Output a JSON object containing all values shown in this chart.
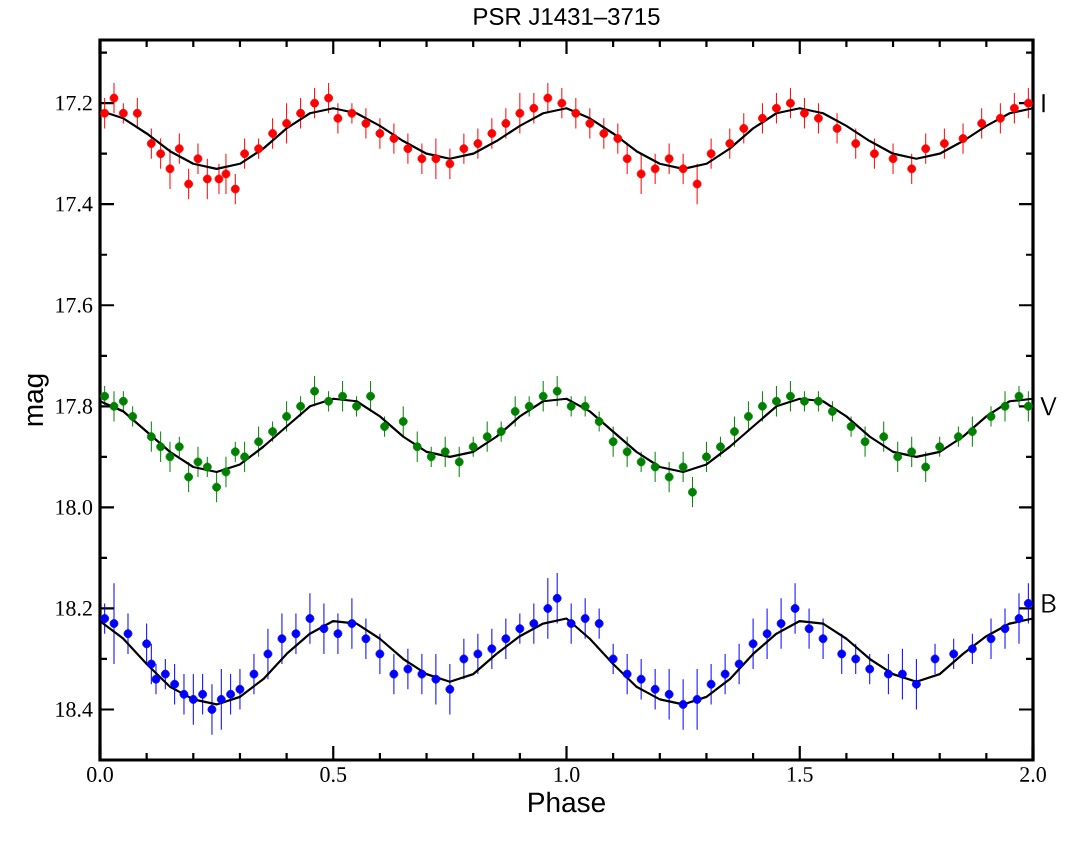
{
  "chart_data": {
    "type": "scatter",
    "title": "PSR J1431–3715",
    "xlabel": "Phase",
    "ylabel": "mag",
    "xlim": [
      0,
      2
    ],
    "ylim": [
      18.5,
      17.075
    ],
    "xticks": [
      {
        "value": 0,
        "label": "0.0"
      },
      {
        "value": 0.1,
        "label": null
      },
      {
        "value": 0.2,
        "label": null
      },
      {
        "value": 0.3,
        "label": null
      },
      {
        "value": 0.4,
        "label": null
      },
      0.5,
      {
        "value": 0.6,
        "label": null
      },
      {
        "value": 0.7,
        "label": null
      },
      {
        "value": 0.8,
        "label": null
      },
      {
        "value": 0.9,
        "label": null
      },
      {
        "value": 1,
        "label": "1.0"
      },
      {
        "value": 1.1,
        "label": null
      },
      {
        "value": 1.2,
        "label": null
      },
      {
        "value": 1.3,
        "label": null
      },
      {
        "value": 1.4,
        "label": null
      },
      1.5,
      {
        "value": 1.6,
        "label": null
      },
      {
        "value": 1.7,
        "label": null
      },
      {
        "value": 1.8,
        "label": null
      },
      {
        "value": 1.9,
        "label": null
      },
      {
        "value": 2,
        "label": "2.0"
      }
    ],
    "yticks": [
      {
        "value": 17.1,
        "label": null
      },
      17.2,
      {
        "value": 17.3,
        "label": null
      },
      17.4,
      {
        "value": 17.5,
        "label": null
      },
      17.6,
      {
        "value": 17.7,
        "label": null
      },
      17.8,
      {
        "value": 17.9,
        "label": null
      },
      {
        "value": 18.0,
        "label": "18.0"
      },
      {
        "value": 18.1,
        "label": null
      },
      18.2,
      {
        "value": 18.3,
        "label": null
      },
      18.4
    ],
    "grid": false,
    "legend": false,
    "series": [
      {
        "name": "I",
        "color": "#ff0000",
        "marker": "circle",
        "x": [
          0.01,
          0.03,
          0.05,
          0.08,
          0.11,
          0.13,
          0.15,
          0.17,
          0.19,
          0.21,
          0.23,
          0.255,
          0.27,
          0.29,
          0.31,
          0.34,
          0.37,
          0.4,
          0.43,
          0.46,
          0.49,
          0.51,
          0.54,
          0.57,
          0.6,
          0.63,
          0.66,
          0.69,
          0.72,
          0.75,
          0.78,
          0.81,
          0.84,
          0.87,
          0.9,
          0.93,
          0.96,
          0.99,
          1.02,
          1.05,
          1.08,
          1.11,
          1.13,
          1.16,
          1.19,
          1.22,
          1.25,
          1.28,
          1.31,
          1.35,
          1.38,
          1.42,
          1.45,
          1.48,
          1.51,
          1.54,
          1.58,
          1.62,
          1.66,
          1.7,
          1.74,
          1.77,
          1.81,
          1.85,
          1.89,
          1.93,
          1.96,
          1.99
        ],
        "values": [
          17.22,
          17.19,
          17.22,
          17.22,
          17.28,
          17.3,
          17.33,
          17.29,
          17.36,
          17.31,
          17.35,
          17.35,
          17.34,
          17.37,
          17.3,
          17.29,
          17.26,
          17.24,
          17.22,
          17.2,
          17.19,
          17.23,
          17.22,
          17.24,
          17.26,
          17.27,
          17.29,
          17.31,
          17.31,
          17.32,
          17.29,
          17.28,
          17.26,
          17.24,
          17.22,
          17.21,
          17.19,
          17.2,
          17.22,
          17.24,
          17.26,
          17.27,
          17.31,
          17.34,
          17.33,
          17.31,
          17.33,
          17.36,
          17.3,
          17.28,
          17.25,
          17.23,
          17.21,
          17.2,
          17.22,
          17.23,
          17.25,
          17.28,
          17.3,
          17.31,
          17.33,
          17.29,
          17.28,
          17.27,
          17.24,
          17.23,
          17.21,
          17.2
        ],
        "errors": [
          0.03,
          0.03,
          0.02,
          0.03,
          0.03,
          0.03,
          0.04,
          0.03,
          0.03,
          0.03,
          0.04,
          0.03,
          0.04,
          0.03,
          0.03,
          0.02,
          0.03,
          0.04,
          0.03,
          0.03,
          0.03,
          0.03,
          0.02,
          0.03,
          0.03,
          0.03,
          0.03,
          0.03,
          0.04,
          0.03,
          0.03,
          0.03,
          0.03,
          0.03,
          0.04,
          0.03,
          0.03,
          0.03,
          0.03,
          0.03,
          0.03,
          0.03,
          0.03,
          0.04,
          0.03,
          0.03,
          0.03,
          0.04,
          0.03,
          0.03,
          0.03,
          0.03,
          0.03,
          0.03,
          0.03,
          0.03,
          0.03,
          0.03,
          0.03,
          0.03,
          0.03,
          0.03,
          0.03,
          0.03,
          0.03,
          0.03,
          0.03,
          0.03
        ]
      },
      {
        "name": "V",
        "color": "#008000",
        "marker": "circle",
        "x": [
          0.01,
          0.03,
          0.05,
          0.07,
          0.11,
          0.13,
          0.15,
          0.17,
          0.19,
          0.21,
          0.23,
          0.25,
          0.27,
          0.29,
          0.31,
          0.34,
          0.37,
          0.4,
          0.43,
          0.46,
          0.49,
          0.52,
          0.55,
          0.58,
          0.61,
          0.65,
          0.68,
          0.71,
          0.74,
          0.77,
          0.8,
          0.83,
          0.86,
          0.89,
          0.92,
          0.95,
          0.98,
          1.01,
          1.04,
          1.07,
          1.1,
          1.13,
          1.16,
          1.19,
          1.22,
          1.25,
          1.27,
          1.3,
          1.33,
          1.36,
          1.39,
          1.42,
          1.45,
          1.48,
          1.51,
          1.54,
          1.57,
          1.61,
          1.64,
          1.68,
          1.71,
          1.74,
          1.77,
          1.8,
          1.84,
          1.87,
          1.91,
          1.94,
          1.97,
          1.99
        ],
        "values": [
          17.78,
          17.8,
          17.79,
          17.82,
          17.86,
          17.88,
          17.9,
          17.88,
          17.94,
          17.91,
          17.92,
          17.96,
          17.93,
          17.89,
          17.9,
          17.87,
          17.85,
          17.82,
          17.8,
          17.77,
          17.79,
          17.78,
          17.8,
          17.78,
          17.84,
          17.83,
          17.88,
          17.9,
          17.89,
          17.91,
          17.88,
          17.86,
          17.85,
          17.81,
          17.8,
          17.78,
          17.77,
          17.8,
          17.8,
          17.83,
          17.87,
          17.89,
          17.91,
          17.92,
          17.94,
          17.92,
          17.97,
          17.9,
          17.88,
          17.85,
          17.82,
          17.8,
          17.79,
          17.78,
          17.79,
          17.79,
          17.81,
          17.84,
          17.87,
          17.86,
          17.9,
          17.89,
          17.92,
          17.88,
          17.86,
          17.85,
          17.82,
          17.8,
          17.78,
          17.8
        ],
        "errors": [
          0.02,
          0.03,
          0.02,
          0.02,
          0.03,
          0.03,
          0.03,
          0.02,
          0.03,
          0.03,
          0.02,
          0.03,
          0.03,
          0.02,
          0.03,
          0.03,
          0.02,
          0.03,
          0.02,
          0.03,
          0.02,
          0.03,
          0.02,
          0.03,
          0.02,
          0.03,
          0.03,
          0.02,
          0.03,
          0.03,
          0.02,
          0.03,
          0.02,
          0.03,
          0.02,
          0.03,
          0.03,
          0.02,
          0.02,
          0.02,
          0.03,
          0.03,
          0.02,
          0.03,
          0.03,
          0.03,
          0.03,
          0.03,
          0.02,
          0.03,
          0.03,
          0.03,
          0.03,
          0.03,
          0.02,
          0.02,
          0.02,
          0.02,
          0.03,
          0.03,
          0.03,
          0.03,
          0.03,
          0.02,
          0.02,
          0.03,
          0.02,
          0.03,
          0.02,
          0.03
        ]
      },
      {
        "name": "B",
        "color": "#0000ff",
        "marker": "circle",
        "x": [
          0.01,
          0.03,
          0.06,
          0.1,
          0.11,
          0.12,
          0.14,
          0.16,
          0.18,
          0.2,
          0.22,
          0.24,
          0.26,
          0.28,
          0.3,
          0.33,
          0.36,
          0.39,
          0.42,
          0.45,
          0.48,
          0.51,
          0.54,
          0.57,
          0.6,
          0.63,
          0.66,
          0.69,
          0.72,
          0.75,
          0.78,
          0.81,
          0.84,
          0.87,
          0.9,
          0.93,
          0.96,
          0.98,
          1.01,
          1.04,
          1.07,
          1.1,
          1.13,
          1.16,
          1.19,
          1.22,
          1.25,
          1.28,
          1.31,
          1.34,
          1.37,
          1.4,
          1.43,
          1.46,
          1.49,
          1.52,
          1.55,
          1.59,
          1.62,
          1.65,
          1.69,
          1.72,
          1.75,
          1.79,
          1.83,
          1.87,
          1.91,
          1.94,
          1.97,
          1.99
        ],
        "values": [
          18.22,
          18.23,
          18.25,
          18.27,
          18.31,
          18.34,
          18.33,
          18.35,
          18.37,
          18.38,
          18.37,
          18.4,
          18.38,
          18.37,
          18.36,
          18.33,
          18.29,
          18.26,
          18.25,
          18.22,
          18.24,
          18.25,
          18.23,
          18.26,
          18.29,
          18.33,
          18.32,
          18.33,
          18.34,
          18.36,
          18.3,
          18.29,
          18.28,
          18.26,
          18.24,
          18.23,
          18.2,
          18.18,
          18.23,
          18.22,
          18.23,
          18.3,
          18.33,
          18.34,
          18.36,
          18.37,
          18.39,
          18.38,
          18.35,
          18.33,
          18.31,
          18.27,
          18.25,
          18.23,
          18.2,
          18.24,
          18.26,
          18.29,
          18.3,
          18.32,
          18.33,
          18.33,
          18.35,
          18.3,
          18.29,
          18.28,
          18.26,
          18.24,
          18.22,
          18.19
        ],
        "errors": [
          0.03,
          0.08,
          0.04,
          0.04,
          0.04,
          0.03,
          0.03,
          0.04,
          0.04,
          0.05,
          0.04,
          0.05,
          0.06,
          0.04,
          0.04,
          0.04,
          0.05,
          0.05,
          0.04,
          0.05,
          0.05,
          0.04,
          0.05,
          0.04,
          0.04,
          0.04,
          0.04,
          0.04,
          0.05,
          0.05,
          0.04,
          0.04,
          0.04,
          0.04,
          0.03,
          0.04,
          0.06,
          0.05,
          0.04,
          0.04,
          0.03,
          0.03,
          0.04,
          0.04,
          0.04,
          0.05,
          0.05,
          0.06,
          0.04,
          0.04,
          0.04,
          0.05,
          0.05,
          0.05,
          0.05,
          0.04,
          0.04,
          0.04,
          0.03,
          0.03,
          0.04,
          0.05,
          0.05,
          0.03,
          0.03,
          0.03,
          0.04,
          0.04,
          0.05,
          0.04
        ]
      },
      {
        "color": "#000000",
        "type": "line",
        "line_style": "solid",
        "marker": "none",
        "x": [
          0,
          0.05,
          0.1,
          0.15,
          0.2,
          0.25,
          0.3,
          0.35,
          0.4,
          0.45,
          0.5,
          0.55,
          0.6,
          0.65,
          0.7,
          0.75,
          0.8,
          0.85,
          0.9,
          0.95,
          1,
          1.05,
          1.1,
          1.15,
          1.2,
          1.25,
          1.3,
          1.35,
          1.4,
          1.45,
          1.5,
          1.55,
          1.6,
          1.65,
          1.7,
          1.75,
          1.8,
          1.85,
          1.9,
          1.95,
          2
        ],
        "values": [
          17.215,
          17.23,
          17.26,
          17.295,
          17.32,
          17.33,
          17.32,
          17.29,
          17.25,
          17.22,
          17.21,
          17.22,
          17.245,
          17.275,
          17.3,
          17.31,
          17.3,
          17.275,
          17.245,
          17.22,
          17.21,
          17.23,
          17.26,
          17.295,
          17.32,
          17.33,
          17.32,
          17.29,
          17.25,
          17.22,
          17.21,
          17.22,
          17.245,
          17.275,
          17.3,
          17.31,
          17.3,
          17.275,
          17.245,
          17.22,
          17.21
        ]
      },
      {
        "color": "#000000",
        "type": "line",
        "line_style": "solid",
        "marker": "none",
        "x": [
          0,
          0.05,
          0.1,
          0.15,
          0.2,
          0.25,
          0.3,
          0.35,
          0.4,
          0.45,
          0.5,
          0.55,
          0.6,
          0.65,
          0.7,
          0.75,
          0.8,
          0.85,
          0.9,
          0.95,
          1,
          1.05,
          1.1,
          1.15,
          1.2,
          1.25,
          1.3,
          1.35,
          1.4,
          1.45,
          1.5,
          1.55,
          1.6,
          1.65,
          1.7,
          1.75,
          1.8,
          1.85,
          1.9,
          1.95,
          2
        ],
        "values": [
          17.79,
          17.81,
          17.85,
          17.89,
          17.92,
          17.93,
          17.915,
          17.88,
          17.84,
          17.8,
          17.785,
          17.79,
          17.82,
          17.86,
          17.89,
          17.9,
          17.89,
          17.86,
          17.82,
          17.79,
          17.785,
          17.81,
          17.85,
          17.89,
          17.92,
          17.93,
          17.915,
          17.88,
          17.84,
          17.8,
          17.785,
          17.79,
          17.82,
          17.86,
          17.89,
          17.9,
          17.89,
          17.86,
          17.82,
          17.79,
          17.785
        ]
      },
      {
        "color": "#000000",
        "type": "line",
        "line_style": "solid",
        "marker": "none",
        "x": [
          0,
          0.05,
          0.1,
          0.15,
          0.2,
          0.25,
          0.3,
          0.35,
          0.4,
          0.45,
          0.5,
          0.55,
          0.6,
          0.65,
          0.7,
          0.75,
          0.8,
          0.85,
          0.9,
          0.95,
          1,
          1.05,
          1.1,
          1.15,
          1.2,
          1.25,
          1.3,
          1.35,
          1.4,
          1.45,
          1.5,
          1.55,
          1.6,
          1.65,
          1.7,
          1.75,
          1.8,
          1.85,
          1.9,
          1.95,
          2
        ],
        "values": [
          18.225,
          18.26,
          18.31,
          18.355,
          18.38,
          18.39,
          18.375,
          18.34,
          18.29,
          18.25,
          18.225,
          18.23,
          18.26,
          18.3,
          18.33,
          18.345,
          18.33,
          18.29,
          18.255,
          18.23,
          18.22,
          18.26,
          18.31,
          18.355,
          18.38,
          18.39,
          18.375,
          18.34,
          18.29,
          18.25,
          18.225,
          18.23,
          18.26,
          18.3,
          18.33,
          18.345,
          18.33,
          18.29,
          18.255,
          18.23,
          18.22
        ]
      }
    ]
  }
}
